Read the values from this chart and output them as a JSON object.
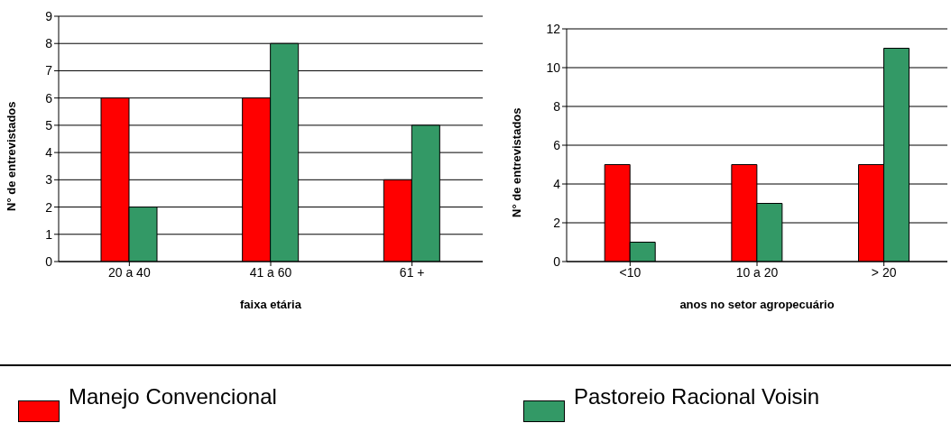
{
  "chart_data": [
    {
      "type": "bar",
      "xlabel": "faixa etária",
      "ylabel": "N° de entrevistados",
      "categories": [
        "20 a 40",
        "41 a 60",
        "61 +"
      ],
      "series": [
        {
          "name": "Manejo Convencional",
          "color": "#ff0000",
          "values": [
            6,
            6,
            3
          ]
        },
        {
          "name": "Pastoreio Racional Voisin",
          "color": "#339966",
          "values": [
            2,
            8,
            5
          ]
        }
      ],
      "ylim": [
        0,
        9
      ],
      "yticks": [
        0,
        1,
        2,
        3,
        4,
        5,
        6,
        7,
        8,
        9
      ],
      "grid": "y",
      "legend": "bottom"
    },
    {
      "type": "bar",
      "xlabel": "anos no setor agropecuário",
      "ylabel": "N° de entrevistados",
      "categories": [
        "<10",
        "10 a 20",
        "> 20"
      ],
      "series": [
        {
          "color": "#ff0000",
          "values": [
            5,
            5,
            5
          ]
        },
        {
          "color": "#339966",
          "values": [
            1,
            3,
            11
          ]
        }
      ],
      "ylim": [
        0,
        12
      ],
      "yticks": [
        0,
        2,
        4,
        6,
        8,
        10,
        12
      ],
      "grid": "y"
    }
  ]
}
